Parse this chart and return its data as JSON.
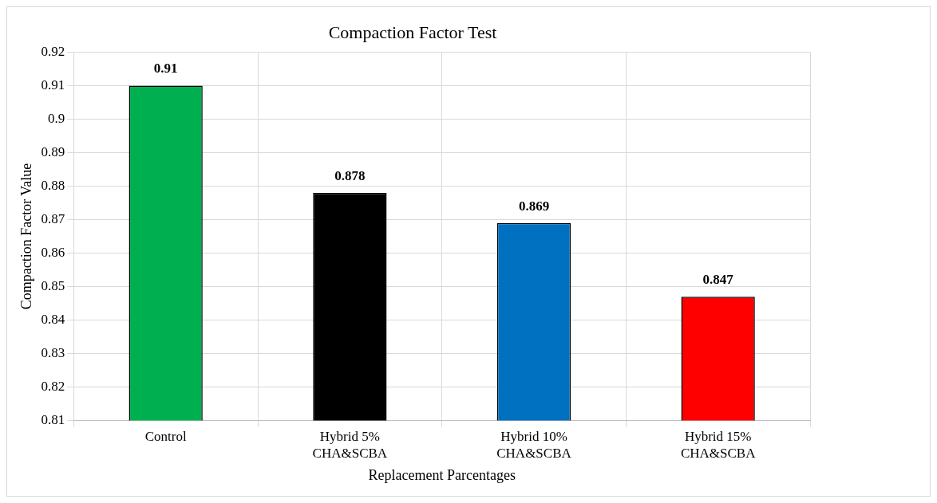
{
  "chart_data": {
    "type": "bar",
    "title": "Compaction Factor Test",
    "xlabel": "Replacement Parcentages",
    "ylabel": "Compaction Factor Value",
    "categories": [
      "Control",
      "Hybrid 5% CHA&SCBA",
      "Hybrid 10% CHA&SCBA",
      "Hybrid 15% CHA&SCBA"
    ],
    "values": [
      0.91,
      0.878,
      0.869,
      0.847
    ],
    "colors": [
      "#00b050",
      "#000000",
      "#0070c0",
      "#ff0000"
    ],
    "ylim": [
      0.81,
      0.92
    ],
    "yticks": [
      0.81,
      0.82,
      0.83,
      0.84,
      0.85,
      0.86,
      0.87,
      0.88,
      0.89,
      0.9,
      0.91,
      0.92
    ],
    "grid": true,
    "data_labels": true
  }
}
